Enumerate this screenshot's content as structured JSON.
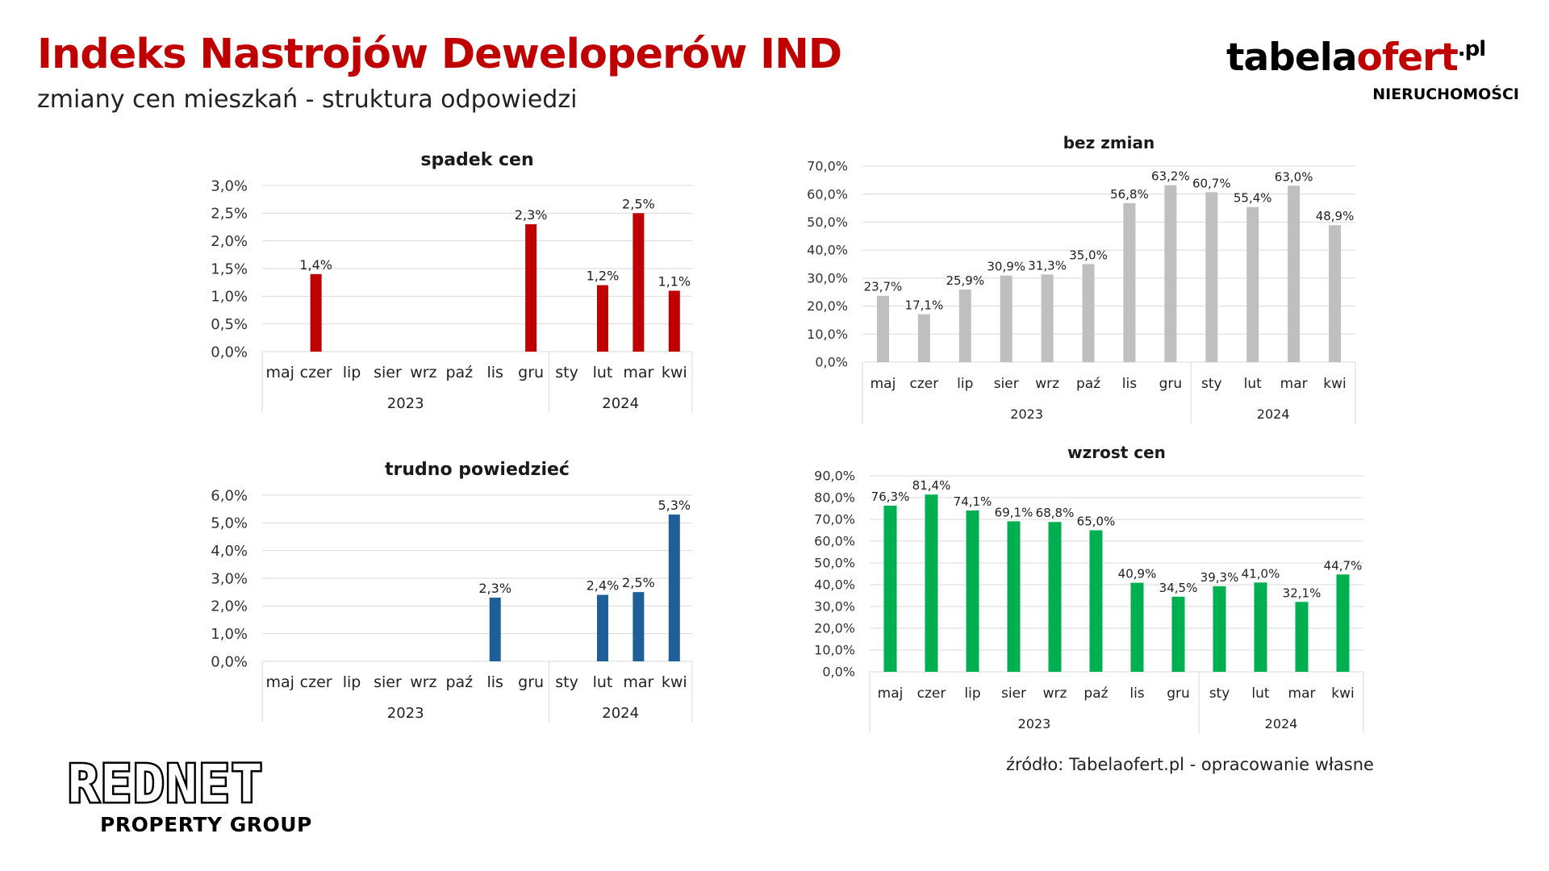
{
  "header": {
    "title": "Indeks Nastrojów Deweloperów IND",
    "subtitle": "zmiany cen mieszkań - struktura odpowiedzi"
  },
  "brand": {
    "word_black": "tabela",
    "word_red": "ofert",
    "tld": ".pl",
    "tagline": "NIERUCHOMOŚCI"
  },
  "footer": {
    "source": "źródło: Tabelaofert.pl - opracowanie własne",
    "logo_main": "REDNET",
    "logo_sub": "PROPERTY GROUP"
  },
  "colors": {
    "title_red": "#c00000",
    "spadek": "#c00000",
    "bez_zmian": "#bfbfbf",
    "trudno": "#1f5f99",
    "wzrost": "#00b050"
  },
  "chart_data": [
    {
      "id": "chart-spadek",
      "type": "bar",
      "title": "spadek cen",
      "categories": [
        "maj",
        "czer",
        "lip",
        "sier",
        "wrz",
        "paź",
        "lis",
        "gru",
        "sty",
        "lut",
        "mar",
        "kwi"
      ],
      "groups": [
        {
          "label": "2023",
          "count": 8
        },
        {
          "label": "2024",
          "count": 4
        }
      ],
      "values": [
        0,
        1.4,
        0,
        0,
        0,
        0,
        0,
        2.3,
        0,
        1.2,
        2.5,
        1.1
      ],
      "data_labels": [
        "",
        "1,4%",
        "",
        "",
        "",
        "",
        "",
        "2,3%",
        "",
        "1,2%",
        "2,5%",
        "1,1%"
      ],
      "ylim": [
        0,
        3.0
      ],
      "yticks": [
        "0,0%",
        "0,5%",
        "1,0%",
        "1,5%",
        "2,0%",
        "2,5%",
        "3,0%"
      ],
      "grid": true
    },
    {
      "id": "chart-bez-zmian",
      "type": "bar",
      "title": "bez zmian",
      "categories": [
        "maj",
        "czer",
        "lip",
        "sier",
        "wrz",
        "paź",
        "lis",
        "gru",
        "sty",
        "lut",
        "mar",
        "kwi"
      ],
      "groups": [
        {
          "label": "2023",
          "count": 8
        },
        {
          "label": "2024",
          "count": 4
        }
      ],
      "values": [
        23.7,
        17.1,
        25.9,
        30.9,
        31.3,
        35.0,
        56.8,
        63.2,
        60.7,
        55.4,
        63.0,
        48.9
      ],
      "data_labels": [
        "23,7%",
        "17,1%",
        "25,9%",
        "30,9%",
        "31,3%",
        "35,0%",
        "56,8%",
        "63,2%",
        "60,7%",
        "55,4%",
        "63,0%",
        "48,9%"
      ],
      "ylim": [
        0,
        70.0
      ],
      "yticks": [
        "0,0%",
        "10,0%",
        "20,0%",
        "30,0%",
        "40,0%",
        "50,0%",
        "60,0%",
        "70,0%"
      ],
      "grid": true
    },
    {
      "id": "chart-trudno",
      "type": "bar",
      "title": "trudno powiedzieć",
      "categories": [
        "maj",
        "czer",
        "lip",
        "sier",
        "wrz",
        "paź",
        "lis",
        "gru",
        "sty",
        "lut",
        "mar",
        "kwi"
      ],
      "groups": [
        {
          "label": "2023",
          "count": 8
        },
        {
          "label": "2024",
          "count": 4
        }
      ],
      "values": [
        0,
        0,
        0,
        0,
        0,
        0,
        2.3,
        0,
        0,
        2.4,
        2.5,
        5.3
      ],
      "data_labels": [
        "",
        "",
        "",
        "",
        "",
        "",
        "2,3%",
        "",
        "",
        "2,4%",
        "2,5%",
        "5,3%"
      ],
      "ylim": [
        0,
        6.0
      ],
      "yticks": [
        "0,0%",
        "1,0%",
        "2,0%",
        "3,0%",
        "4,0%",
        "5,0%",
        "6,0%"
      ],
      "grid": true
    },
    {
      "id": "chart-wzrost",
      "type": "bar",
      "title": "wzrost cen",
      "categories": [
        "maj",
        "czer",
        "lip",
        "sier",
        "wrz",
        "paź",
        "lis",
        "gru",
        "sty",
        "lut",
        "mar",
        "kwi"
      ],
      "groups": [
        {
          "label": "2023",
          "count": 8
        },
        {
          "label": "2024",
          "count": 4
        }
      ],
      "values": [
        76.3,
        81.4,
        74.1,
        69.1,
        68.8,
        65.0,
        40.9,
        34.5,
        39.3,
        41.0,
        32.1,
        44.7
      ],
      "data_labels": [
        "76,3%",
        "81,4%",
        "74,1%",
        "69,1%",
        "68,8%",
        "65,0%",
        "40,9%",
        "34,5%",
        "39,3%",
        "41,0%",
        "32,1%",
        "44,7%"
      ],
      "ylim": [
        0,
        90.0
      ],
      "yticks": [
        "0,0%",
        "10,0%",
        "20,0%",
        "30,0%",
        "40,0%",
        "50,0%",
        "60,0%",
        "70,0%",
        "80,0%",
        "90,0%"
      ],
      "grid": true
    }
  ]
}
